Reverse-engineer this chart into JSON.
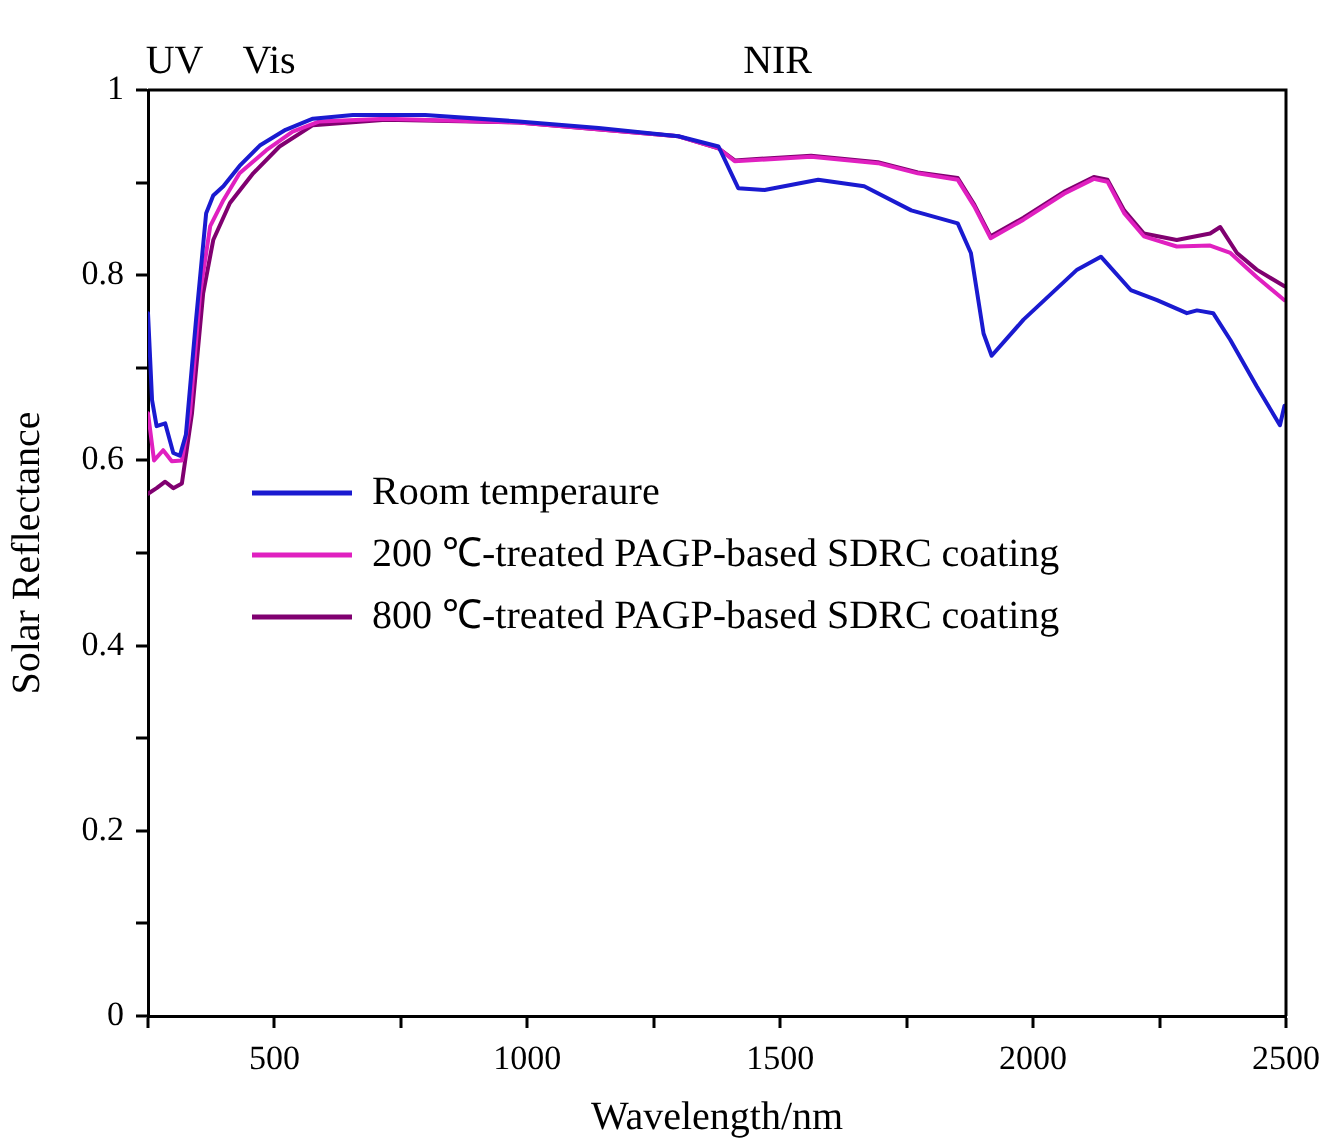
{
  "chart_data": {
    "type": "line",
    "xlabel": "Wavelength/nm",
    "ylabel": "Solar Reflectance",
    "xlim": [
      250,
      2500
    ],
    "xticks": [
      {
        "value": 250,
        "label": null
      },
      500,
      {
        "value": 750,
        "label": null
      },
      1000,
      {
        "value": 1250,
        "label": null
      },
      1500,
      {
        "value": 1750,
        "label": null
      },
      2000,
      {
        "value": 2250,
        "label": null
      },
      2500
    ],
    "ylim": [
      0,
      1
    ],
    "yticks": [
      0,
      {
        "value": 0.1,
        "label": null
      },
      0.2,
      {
        "value": 0.3,
        "label": null
      },
      0.4,
      {
        "value": 0.5,
        "label": null
      },
      0.6,
      {
        "value": 0.7,
        "label": null
      },
      0.8,
      {
        "value": 0.9,
        "label": null
      },
      1
    ],
    "grid": false,
    "legend": "left",
    "marker": "none",
    "line_style": "solid",
    "annotations": [
      "UV",
      "Vis",
      "NIR"
    ],
    "series": [
      {
        "name": "Room temperaure",
        "color": "#1a1ad0",
        "x": [
          250,
          258,
          267,
          284,
          300,
          313,
          325,
          345,
          365,
          379,
          399,
          431,
          471,
          522,
          576,
          655,
          798,
          983,
          1141,
          1299,
          1378,
          1417,
          1469,
          1575,
          1666,
          1759,
          1851,
          1877,
          1902,
          1918,
          1981,
          2087,
          2134,
          2193,
          2245,
          2304,
          2324,
          2356,
          2390,
          2442,
          2488,
          2497
        ],
        "values": [
          0.759,
          0.665,
          0.637,
          0.64,
          0.608,
          0.605,
          0.628,
          0.752,
          0.867,
          0.886,
          0.896,
          0.918,
          0.94,
          0.957,
          0.969,
          0.973,
          0.973,
          0.966,
          0.959,
          0.95,
          0.939,
          0.894,
          0.892,
          0.903,
          0.896,
          0.87,
          0.856,
          0.824,
          0.737,
          0.713,
          0.752,
          0.806,
          0.82,
          0.784,
          0.773,
          0.759,
          0.762,
          0.759,
          0.73,
          0.68,
          0.638,
          0.659
        ]
      },
      {
        "name": "200 ℃-treated PAGP-based SDRC coating",
        "color": "#e020c0",
        "x": [
          250,
          262,
          280,
          297,
          317,
          333,
          353,
          373,
          399,
          431,
          484,
          536,
          589,
          720,
          983,
          1299,
          1378,
          1410,
          1561,
          1693,
          1772,
          1851,
          1884,
          1916,
          1981,
          2061,
          2120,
          2147,
          2180,
          2219,
          2284,
          2350,
          2390,
          2442,
          2497
        ],
        "values": [
          0.651,
          0.6,
          0.611,
          0.599,
          0.6,
          0.651,
          0.78,
          0.853,
          0.881,
          0.91,
          0.935,
          0.955,
          0.966,
          0.969,
          0.965,
          0.95,
          0.937,
          0.923,
          0.928,
          0.921,
          0.91,
          0.903,
          0.874,
          0.84,
          0.86,
          0.888,
          0.904,
          0.901,
          0.867,
          0.842,
          0.831,
          0.832,
          0.824,
          0.798,
          0.773
        ]
      },
      {
        "name": "800 ℃-treated PAGP-based SDRC coating",
        "color": "#800070",
        "x": [
          250,
          267,
          284,
          300,
          317,
          337,
          359,
          379,
          412,
          458,
          510,
          576,
          720,
          983,
          1299,
          1378,
          1410,
          1561,
          1693,
          1772,
          1851,
          1884,
          1916,
          1981,
          2061,
          2120,
          2147,
          2180,
          2219,
          2284,
          2350,
          2370,
          2403,
          2442,
          2497
        ],
        "values": [
          0.564,
          0.57,
          0.577,
          0.57,
          0.575,
          0.651,
          0.78,
          0.838,
          0.878,
          0.91,
          0.939,
          0.962,
          0.968,
          0.965,
          0.95,
          0.937,
          0.924,
          0.929,
          0.922,
          0.911,
          0.905,
          0.876,
          0.842,
          0.862,
          0.89,
          0.906,
          0.903,
          0.87,
          0.845,
          0.838,
          0.845,
          0.852,
          0.824,
          0.806,
          0.788
        ]
      }
    ]
  }
}
